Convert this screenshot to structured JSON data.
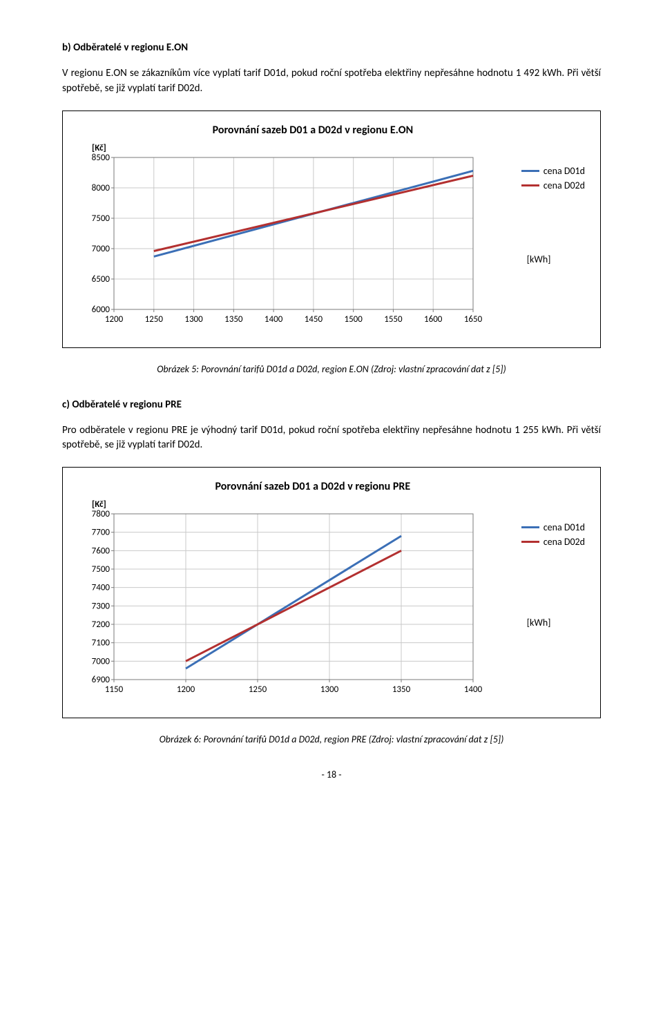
{
  "section_b": {
    "heading": "b) Odběratelé v regionu E.ON",
    "paragraph": "V regionu E.ON se zákazníkům více vyplatí tarif D01d, pokud roční spotřeba elektřiny nepřesáhne hodnotu 1 492 kWh. Při větší spotřebě, se již vyplatí tarif D02d."
  },
  "chart1": {
    "type": "line",
    "title": "Porovnání sazeb D01 a D02d v regionu E.ON",
    "y_unit": "[Kč]",
    "x_unit": "[kWh]",
    "x_ticks": [
      1200,
      1250,
      1300,
      1350,
      1400,
      1450,
      1500,
      1550,
      1600,
      1650
    ],
    "xlim": [
      1200,
      1650
    ],
    "y_ticks": [
      6000,
      6500,
      7000,
      7500,
      8000,
      8500
    ],
    "ylim": [
      6000,
      8500
    ],
    "series": [
      {
        "name": "cena D01d",
        "color": "#3b6fb6",
        "points": [
          [
            1250,
            6870
          ],
          [
            1650,
            8280
          ]
        ]
      },
      {
        "name": "cena D02d",
        "color": "#b33030",
        "points": [
          [
            1250,
            6960
          ],
          [
            1650,
            8200
          ]
        ]
      }
    ],
    "grid_color": "#c9c9c9",
    "border_color": "#7a7a7a",
    "line_width": 3,
    "label_fontsize": 13,
    "title_fontsize": 16
  },
  "caption1": "Obrázek 5: Porovnání tarifů D01d a D02d, region E.ON (Zdroj: vlastní zpracování dat z [5])",
  "section_c": {
    "heading": "c) Odběratelé v regionu PRE",
    "paragraph": "Pro odběratele v regionu PRE je výhodný tarif D01d, pokud roční spotřeba elektřiny nepřesáhne hodnotu 1 255 kWh. Při větší spotřebě, se již vyplatí tarif D02d."
  },
  "chart2": {
    "type": "line",
    "title": "Porovnání sazeb D01 a D02d v regionu PRE",
    "y_unit": "[Kč]",
    "x_unit": "[kWh]",
    "x_ticks": [
      1150,
      1200,
      1250,
      1300,
      1350,
      1400
    ],
    "xlim": [
      1150,
      1400
    ],
    "y_ticks": [
      6900,
      7000,
      7100,
      7200,
      7300,
      7400,
      7500,
      7600,
      7700,
      7800
    ],
    "ylim": [
      6900,
      7800
    ],
    "series": [
      {
        "name": "cena D01d",
        "color": "#3b6fb6",
        "points": [
          [
            1200,
            6960
          ],
          [
            1350,
            7680
          ]
        ]
      },
      {
        "name": "cena D02d",
        "color": "#b33030",
        "points": [
          [
            1200,
            7000
          ],
          [
            1350,
            7600
          ]
        ]
      }
    ],
    "grid_color": "#c9c9c9",
    "border_color": "#7a7a7a",
    "line_width": 3,
    "label_fontsize": 13,
    "title_fontsize": 16
  },
  "caption2": "Obrázek 6: Porovnání tarifů D01d a D02d, region PRE (Zdroj: vlastní zpracování dat z [5])",
  "page_number": "- 18 -"
}
